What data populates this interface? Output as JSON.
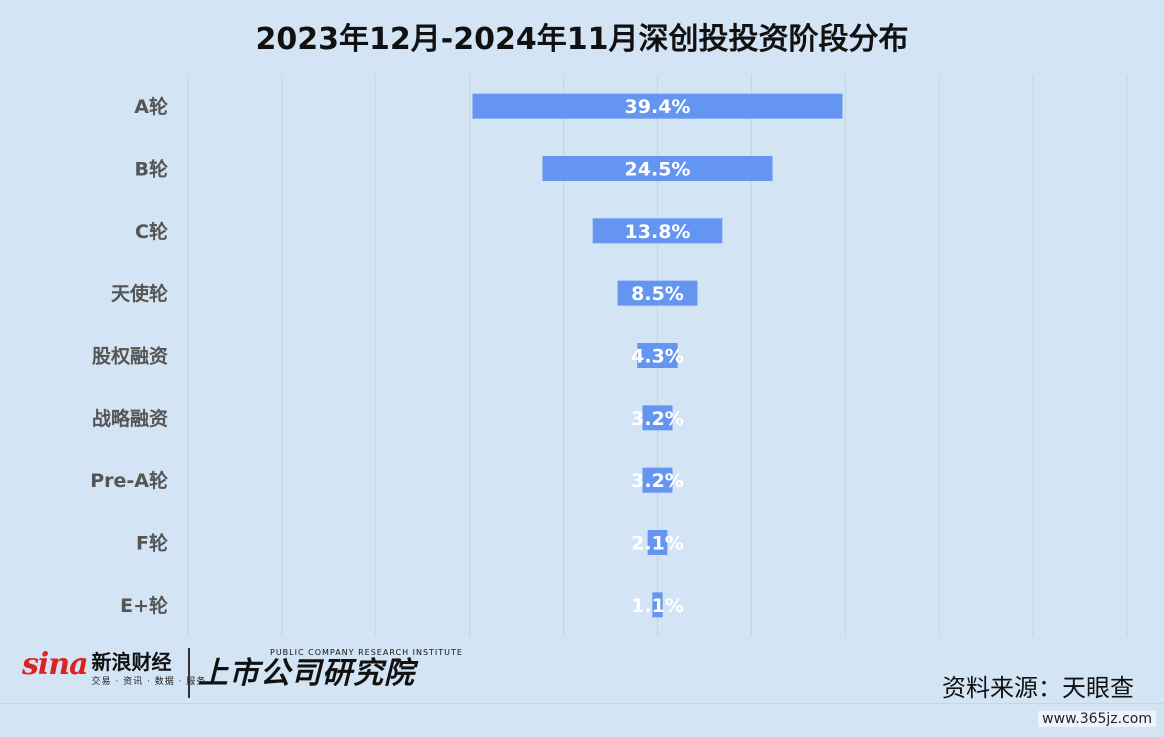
{
  "title": "2023年12月-2024年11月深创投投资阶段分布",
  "chart_data": {
    "type": "bar",
    "orientation": "horizontal",
    "style": "funnel (bars centered)",
    "categories": [
      "A轮",
      "B轮",
      "C轮",
      "天使轮",
      "股权融资",
      "战略融资",
      "Pre-A轮",
      "F轮",
      "E+轮"
    ],
    "values": [
      39.4,
      24.5,
      13.8,
      8.5,
      4.3,
      3.2,
      3.2,
      2.1,
      1.1
    ],
    "data_labels": [
      "39.4%",
      "24.5%",
      "13.8%",
      "8.5%",
      "4.3%",
      "3.2%",
      "3.2%",
      "2.1%",
      "1.1%"
    ],
    "unit": "%",
    "xlim": [
      -50,
      50
    ],
    "grid": "vertical",
    "bar_color": "#6495f0"
  },
  "footer": {
    "sina_mark": "sina",
    "sina_name": "新浪财经",
    "sina_sub": "交易 · 资讯 · 数据 · 服务",
    "institute_en": "PUBLIC COMPANY RESEARCH INSTITUTE",
    "institute_cn": "上市公司研究院",
    "source": "资料来源：天眼查"
  },
  "watermark": "www.365jz.com"
}
